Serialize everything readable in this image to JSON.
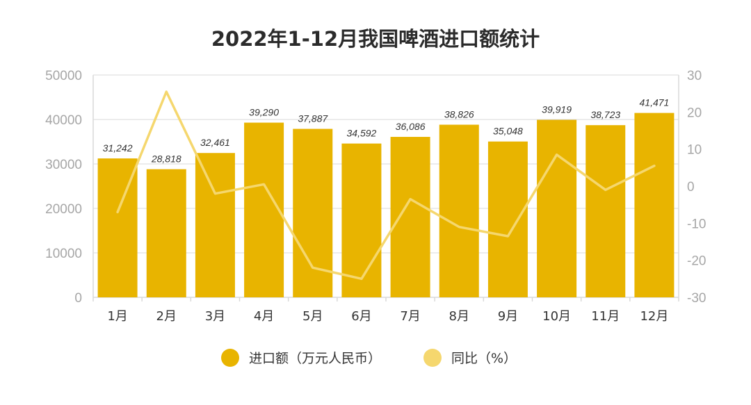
{
  "chart_data": {
    "type": "bar",
    "title": "2022年1-12月我国啤酒进口额统计",
    "categories": [
      "1月",
      "2月",
      "3月",
      "4月",
      "5月",
      "6月",
      "7月",
      "8月",
      "9月",
      "10月",
      "11月",
      "12月"
    ],
    "series": [
      {
        "name": "进口额（万元人民币）",
        "kind": "bar",
        "axis": "left",
        "color": "#e8b400",
        "values": [
          31242,
          28818,
          32461,
          39290,
          37887,
          34592,
          36086,
          38826,
          35048,
          39919,
          38723,
          41471
        ],
        "labels": [
          "31,242",
          "28,818",
          "32,461",
          "39,290",
          "37,887",
          "34,592",
          "36,086",
          "38,826",
          "35,048",
          "39,919",
          "38,723",
          "41,471"
        ]
      },
      {
        "name": "同比（%）",
        "kind": "line",
        "axis": "right",
        "color": "#f5d76e",
        "values": [
          -7,
          25.5,
          -2,
          0.5,
          -22,
          -25,
          -3.5,
          -11,
          -13.5,
          8.5,
          -1,
          5.5
        ]
      }
    ],
    "y_left": {
      "min": 0,
      "max": 50000,
      "ticks": [
        "0",
        "10000",
        "20000",
        "30000",
        "40000",
        "50000"
      ]
    },
    "y_right": {
      "min": -30,
      "max": 30,
      "ticks": [
        "-30",
        "-20",
        "-10",
        "0",
        "10",
        "20",
        "30"
      ]
    },
    "legend_position": "bottom-center"
  }
}
